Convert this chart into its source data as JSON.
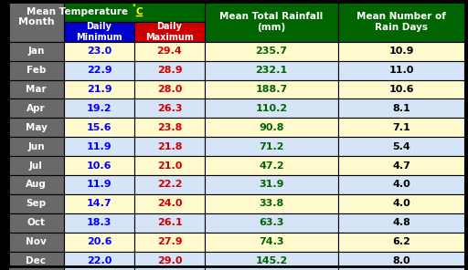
{
  "months": [
    "Jan",
    "Feb",
    "Mar",
    "Apr",
    "May",
    "Jun",
    "Jul",
    "Aug",
    "Sep",
    "Oct",
    "Nov",
    "Dec"
  ],
  "daily_min": [
    23.0,
    22.9,
    21.9,
    19.2,
    15.6,
    11.9,
    10.6,
    11.9,
    14.7,
    18.3,
    20.6,
    22.0
  ],
  "daily_max": [
    29.4,
    28.9,
    28.0,
    26.3,
    23.8,
    21.8,
    21.0,
    22.2,
    24.0,
    26.1,
    27.9,
    29.0
  ],
  "rainfall": [
    235.7,
    232.1,
    188.7,
    110.2,
    90.8,
    71.2,
    47.2,
    31.9,
    33.8,
    63.3,
    74.3,
    145.2
  ],
  "rain_days": [
    10.9,
    11.0,
    10.6,
    8.1,
    7.1,
    5.4,
    4.7,
    4.0,
    4.0,
    4.8,
    6.2,
    8.0
  ],
  "header_bg": "#006400",
  "subheader_min_bg": "#0000CD",
  "subheader_max_bg": "#CC0000",
  "month_col_bg": "#696969",
  "row_bg_odd": "#FFFACD",
  "row_bg_even": "#D6E4F7",
  "text_month": "#FFFFFF",
  "text_min": "#0000FF",
  "text_max": "#CC0000",
  "text_rainfall": "#006400",
  "text_raindays": "#000000",
  "header_text_white": "#FFFFFF",
  "superscript_color": "#FFFF00"
}
